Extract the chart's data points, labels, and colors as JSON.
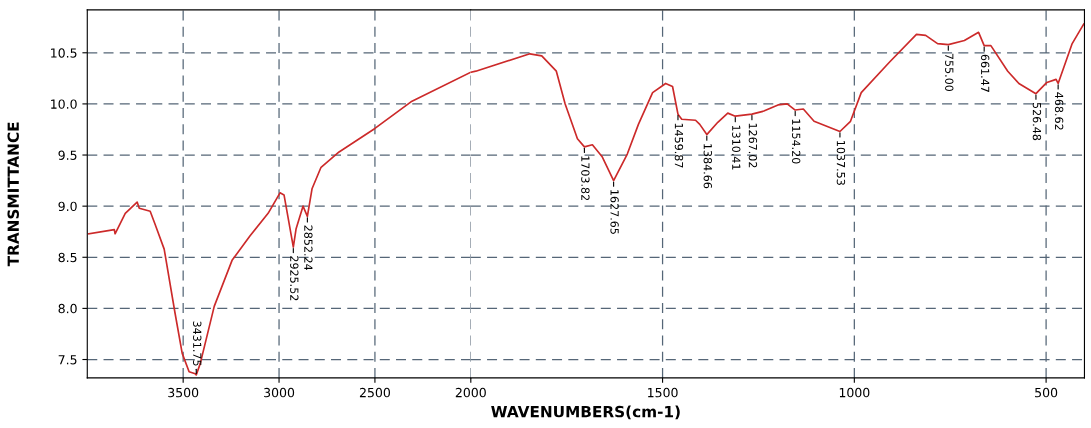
{
  "chart_data": [
    {
      "type": "line",
      "ylabel": "TRANSMITTANCE",
      "xlim": [
        4000,
        2000
      ],
      "xticks": [
        3500,
        3000,
        2500,
        2000
      ],
      "ylim": [
        7.32,
        10.92
      ],
      "yticks": [
        7.5,
        {
          "value": 8.0,
          "label": "8.0"
        },
        8.5,
        {
          "value": 9.0,
          "label": "9.0"
        },
        9.5,
        {
          "value": 10.0,
          "label": "10.0"
        },
        10.5
      ],
      "grid": true,
      "line_style": "solid",
      "marker": "none",
      "series": [
        {
          "color": "#cc2a2a",
          "x": [
            3992,
            3859,
            3855,
            3802,
            3740,
            3729,
            3672,
            3646,
            3599,
            3542,
            3505,
            3469,
            3437,
            3431.75,
            3411,
            3338,
            3245,
            3151,
            3057,
            2995,
            2974,
            2925.52,
            2911,
            2875,
            2852.24,
            2828,
            2781,
            2687,
            2500,
            2312,
            2000
          ],
          "values": [
            8.73,
            8.77,
            8.73,
            8.93,
            9.04,
            8.98,
            8.95,
            8.82,
            8.58,
            7.95,
            7.56,
            7.38,
            7.36,
            7.35,
            7.46,
            8.02,
            8.47,
            8.71,
            8.93,
            9.13,
            9.11,
            8.6,
            8.78,
            9.0,
            8.9,
            9.17,
            9.38,
            9.53,
            9.76,
            10.02,
            10.31
          ]
        }
      ],
      "annotations": [
        {
          "text": "3431.75",
          "x": 3431.75,
          "y": 7.35
        },
        {
          "text": "2925.52",
          "x": 2925.52,
          "y": 8.6
        },
        {
          "text": "2852.24",
          "x": 2852.24,
          "y": 8.9
        }
      ]
    },
    {
      "type": "line",
      "xlabel": "WAVENUMBERS(cm-1)",
      "tick_labels": "x",
      "xlim": [
        2000,
        400
      ],
      "xticks": [
        1500,
        1000,
        500
      ],
      "ylim": [
        7.32,
        10.92
      ],
      "yticks": [
        7.5,
        8,
        8.5,
        9,
        9.5,
        10,
        10.5
      ],
      "grid": true,
      "line_style": "solid",
      "marker": "none",
      "series": [
        {
          "color": "#cc2a2a",
          "x": [
            2000,
            1987,
            1846,
            1815,
            1777,
            1754,
            1722,
            1703.82,
            1683,
            1657,
            1627.65,
            1592,
            1563,
            1526,
            1492,
            1474,
            1459.87,
            1450,
            1414,
            1403,
            1384.66,
            1356,
            1330,
            1310.41,
            1267.02,
            1236,
            1199,
            1175,
            1154.2,
            1133,
            1105,
            1037.53,
            1010,
            982,
            908,
            838,
            814,
            783,
            755,
            713,
            676,
            661.47,
            644,
            600,
            571,
            526.48,
            498,
            474,
            468.62,
            432,
            402
          ],
          "values": [
            10.31,
            10.32,
            10.49,
            10.47,
            10.32,
            10.0,
            9.66,
            9.58,
            9.6,
            9.48,
            9.25,
            9.51,
            9.8,
            10.11,
            10.2,
            10.17,
            9.9,
            9.85,
            9.84,
            9.8,
            9.7,
            9.82,
            9.91,
            9.88,
            9.9,
            9.93,
            9.99,
            10.0,
            9.94,
            9.95,
            9.83,
            9.73,
            9.83,
            10.11,
            10.41,
            10.68,
            10.67,
            10.59,
            10.58,
            10.62,
            10.7,
            10.57,
            10.57,
            10.32,
            10.2,
            10.1,
            10.21,
            10.24,
            10.2,
            10.59,
            10.78
          ]
        }
      ],
      "annotations": [
        {
          "text": "1703.82",
          "x": 1703.82,
          "y": 9.58
        },
        {
          "text": "1627.65",
          "x": 1627.65,
          "y": 9.25
        },
        {
          "text": "1459.87",
          "x": 1459.87,
          "y": 9.9
        },
        {
          "text": "1384.66",
          "x": 1384.66,
          "y": 9.7
        },
        {
          "text": "1310.41",
          "x": 1310.41,
          "y": 9.88
        },
        {
          "text": "1267.02",
          "x": 1267.02,
          "y": 9.9
        },
        {
          "text": "1154.20",
          "x": 1154.2,
          "y": 9.94
        },
        {
          "text": "1037.53",
          "x": 1037.53,
          "y": 9.73
        },
        {
          "text": "755.00",
          "x": 755,
          "y": 10.58
        },
        {
          "text": "661.47",
          "x": 661.47,
          "y": 10.57
        },
        {
          "text": "526.48",
          "x": 526.48,
          "y": 10.1
        },
        {
          "text": "468.62",
          "x": 468.62,
          "y": 10.2
        }
      ]
    }
  ]
}
